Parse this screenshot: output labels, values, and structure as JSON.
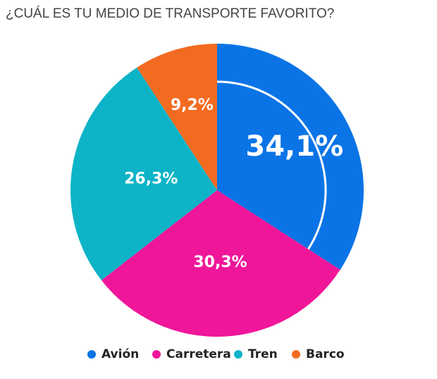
{
  "chart_data": {
    "type": "pie",
    "title": "¿CUÁL ES TU MEDIO DE TRANSPORTE FAVORITO?",
    "categories": [
      "Avión",
      "Carretera",
      "Tren",
      "Barco"
    ],
    "values": [
      34.1,
      30.3,
      26.3,
      9.2
    ],
    "value_labels": [
      "34,1%",
      "30,3%",
      "26,3%",
      "9,2%"
    ],
    "colors": [
      "#0a74e6",
      "#f0169a",
      "#0db3c7",
      "#f36b21"
    ],
    "legend": "bottom"
  }
}
